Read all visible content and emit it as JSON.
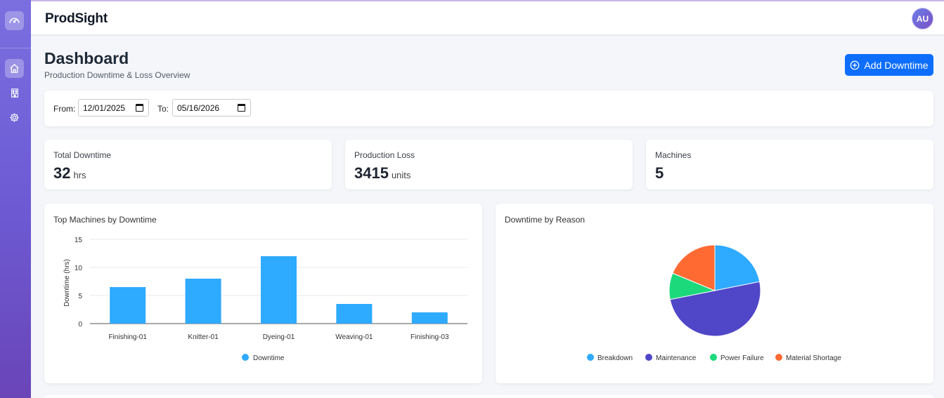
{
  "app": {
    "brand": "ProdSight",
    "avatar_initials": "AU"
  },
  "sidebar": {
    "logo_icon": "speedometer-icon",
    "items": [
      {
        "icon": "home-icon",
        "active": true
      },
      {
        "icon": "building-icon",
        "active": false
      },
      {
        "icon": "gear-icon",
        "active": false
      }
    ]
  },
  "header": {
    "title": "Dashboard",
    "subtitle": "Production Downtime & Loss Overview",
    "add_button_label": "Add Downtime"
  },
  "filters": {
    "from_label": "From:",
    "from_value": "12/01/2025",
    "to_label": "To:",
    "to_value": "05/16/2026"
  },
  "stats": {
    "total_downtime": {
      "label": "Total Downtime",
      "value": "32",
      "unit": "hrs"
    },
    "production_loss": {
      "label": "Production Loss",
      "value": "3415",
      "unit": "units"
    },
    "machines": {
      "label": "Machines",
      "value": "5"
    }
  },
  "colors": {
    "accent": "#0d6efd",
    "bar": "#2eaaff",
    "breakdown": "#2eaaff",
    "maintenance": "#5046c8",
    "power_failure": "#1cd97b",
    "material_shortage": "#ff6a33"
  },
  "chart_data": [
    {
      "type": "bar",
      "title": "Top Machines by Downtime",
      "categories": [
        "Finishing-01",
        "Knitter-01",
        "Dyeing-01",
        "Weaving-01",
        "Finishing-03"
      ],
      "series": [
        {
          "name": "Downtime",
          "values": [
            6.5,
            8,
            12,
            3.5,
            2
          ]
        }
      ],
      "ylabel": "Downtime (hrs)",
      "xlabel": "",
      "ylim": [
        0,
        15
      ],
      "yticks": [
        "0",
        "5",
        "10",
        "15"
      ],
      "grid": true,
      "legend": "bottom"
    },
    {
      "type": "pie",
      "title": "Downtime by Reason",
      "labels": [
        "Breakdown",
        "Maintenance",
        "Power Failure",
        "Material Shortage"
      ],
      "values": [
        7,
        16,
        3,
        6
      ],
      "legend": "bottom"
    }
  ]
}
